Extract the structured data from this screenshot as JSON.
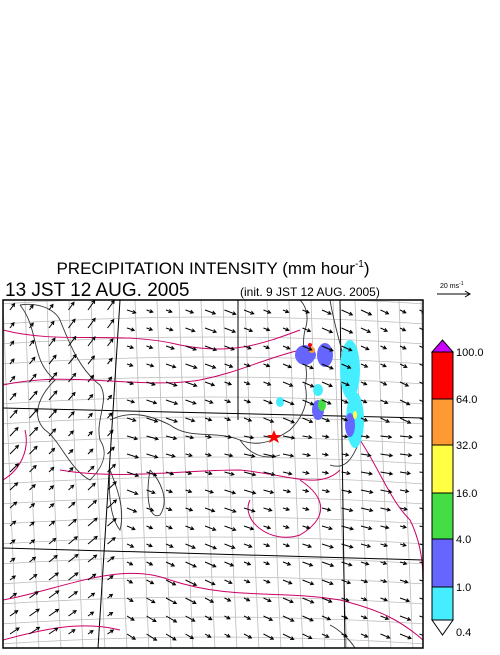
{
  "header": {
    "title": "PRECIPITATION INTENSITY (mm hour",
    "title_sup": "-1",
    "title_end": ")",
    "valid_time": "13 JST 12 AUG. 2005",
    "init_time": "(init. 9 JST 12 AUG. 2005)"
  },
  "vector_legend": {
    "label": "20 ms",
    "label_sup": "-1"
  },
  "colorbar": {
    "labels": [
      "100.0",
      "64.0",
      "32.0",
      "16.0",
      "4.0",
      "1.0",
      "0.4"
    ],
    "colors": [
      "#cc00ff",
      "#ff0000",
      "#ff9933",
      "#ffff44",
      "#44dd44",
      "#6666ff",
      "#44eeff",
      "#ffffff"
    ]
  }
}
